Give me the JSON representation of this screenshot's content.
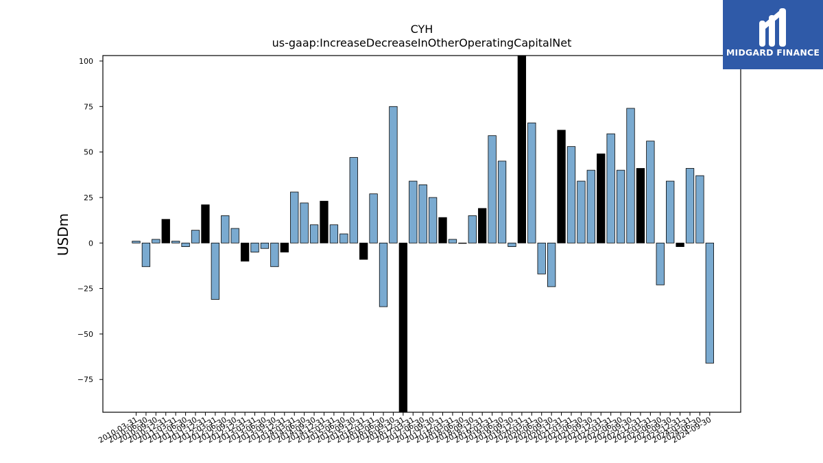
{
  "brand": {
    "name": "MIDGARD FINANCE",
    "logo_icon": "midgard-m-logo-icon",
    "bg_color": "#2f5aa8",
    "fg_color": "#ffffff"
  },
  "chart_data": {
    "type": "bar",
    "title": "CYH",
    "subtitle": "us-gaap:IncreaseDecreaseInOtherOperatingCapitalNet",
    "xlabel": "",
    "ylabel": "USDm",
    "ylim": [
      -93,
      103
    ],
    "yticks": [
      -75,
      -50,
      -25,
      0,
      25,
      50,
      75,
      100
    ],
    "grid": false,
    "colors": {
      "quarterly": "#7aaad0",
      "annual": "#000000",
      "edge": "#000000"
    },
    "categories": [
      "2010-03-31",
      "2010-06-30",
      "2010-09-30",
      "2010-12-31",
      "2011-03-31",
      "2011-06-30",
      "2011-09-30",
      "2011-12-31",
      "2012-03-31",
      "2012-06-30",
      "2012-09-30",
      "2012-12-31",
      "2013-03-31",
      "2013-06-30",
      "2013-09-30",
      "2013-12-31",
      "2014-03-31",
      "2014-06-30",
      "2014-09-30",
      "2014-12-31",
      "2015-03-31",
      "2015-06-30",
      "2015-09-30",
      "2015-12-31",
      "2016-03-31",
      "2016-06-30",
      "2016-09-30",
      "2016-12-31",
      "2017-03-31",
      "2017-06-30",
      "2017-09-30",
      "2017-12-31",
      "2018-03-31",
      "2018-06-30",
      "2018-09-30",
      "2018-12-31",
      "2019-03-31",
      "2019-06-30",
      "2019-09-30",
      "2019-12-31",
      "2020-03-31",
      "2020-06-30",
      "2020-09-30",
      "2020-12-31",
      "2021-03-31",
      "2021-06-30",
      "2021-09-30",
      "2021-12-31",
      "2022-03-31",
      "2022-06-30",
      "2022-09-30",
      "2022-12-31",
      "2023-03-31",
      "2023-06-30",
      "2023-09-30",
      "2023-12-31",
      "2024-03-31",
      "2024-06-30",
      "2024-09-30"
    ],
    "values": [
      1,
      -13,
      2,
      13,
      1,
      -2,
      7,
      21,
      -31,
      15,
      8,
      -10,
      -5,
      -3,
      -13,
      -5,
      28,
      22,
      10,
      23,
      10,
      5,
      47,
      -9,
      27,
      -35,
      75,
      -93,
      34,
      32,
      25,
      14,
      2,
      0,
      15,
      19,
      59,
      45,
      -2,
      103,
      66,
      -17,
      -24,
      62,
      53,
      34,
      40,
      49,
      60,
      40,
      74,
      41,
      56,
      -23,
      34,
      -2,
      41,
      37,
      -66
    ],
    "annual": [
      false,
      false,
      false,
      true,
      false,
      false,
      false,
      true,
      false,
      false,
      false,
      true,
      false,
      false,
      false,
      true,
      false,
      false,
      false,
      true,
      false,
      false,
      false,
      true,
      false,
      false,
      false,
      true,
      false,
      false,
      false,
      true,
      false,
      false,
      false,
      true,
      false,
      false,
      false,
      true,
      false,
      false,
      false,
      true,
      false,
      false,
      false,
      true,
      false,
      false,
      false,
      true,
      false,
      false,
      false,
      true,
      false,
      false,
      false
    ]
  }
}
